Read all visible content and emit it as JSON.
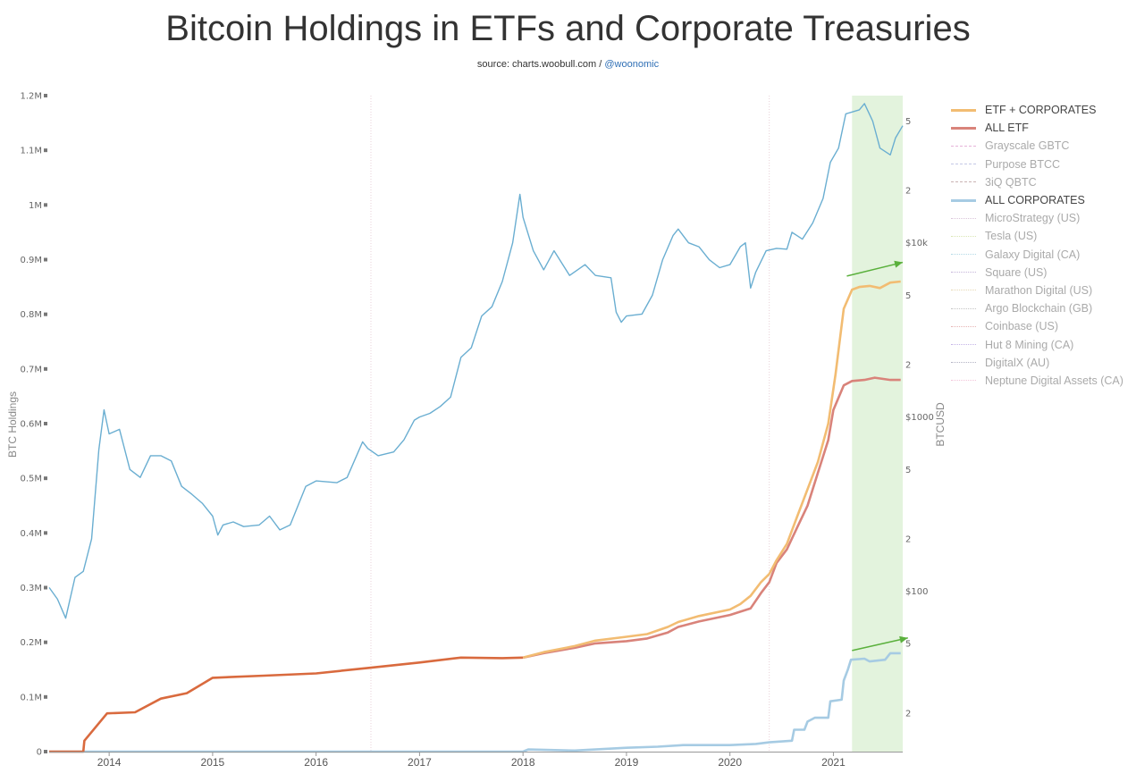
{
  "title": "Bitcoin Holdings in ETFs and Corporate Treasuries",
  "subtitle": {
    "source": "source: charts.woobull.com /",
    "handle": "@woonomic"
  },
  "chart_data": {
    "type": "line",
    "left_axis": {
      "label": "BTC Holdings",
      "ticks": [
        "0",
        "0.1M",
        "0.2M",
        "0.3M",
        "0.4M",
        "0.5M",
        "0.6M",
        "0.7M",
        "0.8M",
        "0.9M",
        "1M",
        "1.1M",
        "1.2M"
      ],
      "range": [
        0,
        1200000
      ]
    },
    "right_axis": {
      "label": "BTCUSD",
      "scale": "log",
      "ticks": [
        "2",
        "5",
        "$100",
        "2",
        "5",
        "$1000",
        "2",
        "5",
        "$10k",
        "2",
        "5"
      ]
    },
    "x_axis": {
      "ticks": [
        "2014",
        "2015",
        "2016",
        "2017",
        "2018",
        "2019",
        "2020",
        "2021"
      ],
      "range": [
        2013.42,
        2021.67
      ]
    },
    "highlight_region": {
      "from": 2021.18,
      "to": 2021.67,
      "color": "#e3f3dd"
    },
    "series": [
      {
        "name": "ETF + CORPORATES",
        "color": "#f2bc72",
        "axis": "left",
        "points": [
          [
            2018.0,
            172000
          ],
          [
            2018.2,
            182000
          ],
          [
            2018.5,
            193000
          ],
          [
            2018.7,
            203000
          ],
          [
            2019.0,
            210000
          ],
          [
            2019.2,
            215000
          ],
          [
            2019.4,
            228000
          ],
          [
            2019.5,
            237000
          ],
          [
            2019.7,
            248000
          ],
          [
            2020.0,
            260000
          ],
          [
            2020.1,
            270000
          ],
          [
            2020.2,
            285000
          ],
          [
            2020.3,
            310000
          ],
          [
            2020.38,
            325000
          ],
          [
            2020.45,
            350000
          ],
          [
            2020.55,
            380000
          ],
          [
            2020.65,
            430000
          ],
          [
            2020.75,
            480000
          ],
          [
            2020.85,
            530000
          ],
          [
            2020.95,
            600000
          ],
          [
            2021.02,
            690000
          ],
          [
            2021.1,
            810000
          ],
          [
            2021.18,
            845000
          ],
          [
            2021.25,
            850000
          ],
          [
            2021.35,
            852000
          ],
          [
            2021.45,
            848000
          ],
          [
            2021.55,
            858000
          ],
          [
            2021.65,
            860000
          ]
        ]
      },
      {
        "name": "ALL ETF",
        "color": "#d9837a",
        "axis": "left",
        "points": [
          [
            2018.0,
            172000
          ],
          [
            2018.2,
            180000
          ],
          [
            2018.5,
            190000
          ],
          [
            2018.7,
            198000
          ],
          [
            2019.0,
            202000
          ],
          [
            2019.2,
            207000
          ],
          [
            2019.4,
            218000
          ],
          [
            2019.5,
            228000
          ],
          [
            2019.7,
            238000
          ],
          [
            2020.0,
            250000
          ],
          [
            2020.2,
            262000
          ],
          [
            2020.3,
            290000
          ],
          [
            2020.38,
            310000
          ],
          [
            2020.45,
            345000
          ],
          [
            2020.55,
            370000
          ],
          [
            2020.65,
            410000
          ],
          [
            2020.75,
            450000
          ],
          [
            2020.85,
            510000
          ],
          [
            2020.95,
            570000
          ],
          [
            2021.0,
            625000
          ],
          [
            2021.1,
            670000
          ],
          [
            2021.18,
            678000
          ],
          [
            2021.3,
            680000
          ],
          [
            2021.4,
            684000
          ],
          [
            2021.55,
            680000
          ],
          [
            2021.65,
            680000
          ]
        ]
      },
      {
        "name": "ETF + CORPORATES (pre-2018)",
        "color": "#d96a3e",
        "axis": "left",
        "legend": false,
        "points": [
          [
            2013.42,
            0
          ],
          [
            2013.75,
            0
          ],
          [
            2013.76,
            20000
          ],
          [
            2013.98,
            70000
          ],
          [
            2014.25,
            72000
          ],
          [
            2014.5,
            97000
          ],
          [
            2014.75,
            107000
          ],
          [
            2015.0,
            135000
          ],
          [
            2015.5,
            139000
          ],
          [
            2016.0,
            143000
          ],
          [
            2016.5,
            153000
          ],
          [
            2017.0,
            163000
          ],
          [
            2017.4,
            172000
          ],
          [
            2017.8,
            171000
          ],
          [
            2018.0,
            172000
          ]
        ]
      },
      {
        "name": "ALL CORPORATES",
        "color": "#a6cbe3",
        "axis": "left",
        "points": [
          [
            2013.42,
            0
          ],
          [
            2018.0,
            0
          ],
          [
            2018.05,
            4000
          ],
          [
            2018.5,
            2000
          ],
          [
            2019.0,
            7000
          ],
          [
            2019.3,
            9000
          ],
          [
            2019.55,
            12000
          ],
          [
            2020.0,
            12000
          ],
          [
            2020.25,
            14000
          ],
          [
            2020.38,
            17000
          ],
          [
            2020.6,
            20000
          ],
          [
            2020.62,
            40000
          ],
          [
            2020.72,
            40000
          ],
          [
            2020.75,
            55000
          ],
          [
            2020.82,
            62000
          ],
          [
            2020.95,
            62000
          ],
          [
            2020.97,
            92000
          ],
          [
            2021.08,
            95000
          ],
          [
            2021.1,
            130000
          ],
          [
            2021.14,
            150000
          ],
          [
            2021.17,
            168000
          ],
          [
            2021.3,
            170000
          ],
          [
            2021.35,
            165000
          ],
          [
            2021.5,
            168000
          ],
          [
            2021.55,
            180000
          ],
          [
            2021.65,
            180000
          ]
        ]
      },
      {
        "name": "BTCUSD",
        "color": "#6aaed1",
        "axis": "right",
        "legend": false,
        "points": [
          [
            2013.42,
            105
          ],
          [
            2013.5,
            90
          ],
          [
            2013.58,
            70
          ],
          [
            2013.67,
            120
          ],
          [
            2013.75,
            130
          ],
          [
            2013.83,
            200
          ],
          [
            2013.9,
            650
          ],
          [
            2013.95,
            1100
          ],
          [
            2014.0,
            800
          ],
          [
            2014.1,
            850
          ],
          [
            2014.2,
            500
          ],
          [
            2014.3,
            450
          ],
          [
            2014.4,
            600
          ],
          [
            2014.5,
            600
          ],
          [
            2014.6,
            560
          ],
          [
            2014.7,
            400
          ],
          [
            2014.8,
            360
          ],
          [
            2014.9,
            320
          ],
          [
            2015.0,
            270
          ],
          [
            2015.05,
            210
          ],
          [
            2015.1,
            240
          ],
          [
            2015.2,
            250
          ],
          [
            2015.3,
            235
          ],
          [
            2015.45,
            240
          ],
          [
            2015.55,
            270
          ],
          [
            2015.65,
            225
          ],
          [
            2015.75,
            240
          ],
          [
            2015.9,
            400
          ],
          [
            2016.0,
            430
          ],
          [
            2016.2,
            420
          ],
          [
            2016.3,
            450
          ],
          [
            2016.45,
            720
          ],
          [
            2016.5,
            660
          ],
          [
            2016.6,
            600
          ],
          [
            2016.75,
            630
          ],
          [
            2016.85,
            740
          ],
          [
            2016.95,
            960
          ],
          [
            2017.0,
            1000
          ],
          [
            2017.1,
            1050
          ],
          [
            2017.2,
            1150
          ],
          [
            2017.3,
            1300
          ],
          [
            2017.4,
            2200
          ],
          [
            2017.5,
            2500
          ],
          [
            2017.6,
            3800
          ],
          [
            2017.7,
            4300
          ],
          [
            2017.8,
            6000
          ],
          [
            2017.9,
            10000
          ],
          [
            2017.97,
            19000
          ],
          [
            2018.0,
            14000
          ],
          [
            2018.1,
            9000
          ],
          [
            2018.2,
            7000
          ],
          [
            2018.3,
            9000
          ],
          [
            2018.45,
            6500
          ],
          [
            2018.6,
            7500
          ],
          [
            2018.7,
            6500
          ],
          [
            2018.85,
            6300
          ],
          [
            2018.9,
            4000
          ],
          [
            2018.95,
            3500
          ],
          [
            2019.0,
            3800
          ],
          [
            2019.15,
            3900
          ],
          [
            2019.25,
            5000
          ],
          [
            2019.35,
            8000
          ],
          [
            2019.45,
            11000
          ],
          [
            2019.5,
            12000
          ],
          [
            2019.6,
            10000
          ],
          [
            2019.7,
            9500
          ],
          [
            2019.8,
            8000
          ],
          [
            2019.9,
            7200
          ],
          [
            2020.0,
            7500
          ],
          [
            2020.1,
            9500
          ],
          [
            2020.15,
            10000
          ],
          [
            2020.2,
            5500
          ],
          [
            2020.25,
            6800
          ],
          [
            2020.35,
            9000
          ],
          [
            2020.45,
            9300
          ],
          [
            2020.55,
            9200
          ],
          [
            2020.6,
            11500
          ],
          [
            2020.7,
            10500
          ],
          [
            2020.8,
            13000
          ],
          [
            2020.9,
            18000
          ],
          [
            2020.97,
            29000
          ],
          [
            2021.05,
            35000
          ],
          [
            2021.12,
            55000
          ],
          [
            2021.25,
            58000
          ],
          [
            2021.3,
            63000
          ],
          [
            2021.38,
            50000
          ],
          [
            2021.45,
            35000
          ],
          [
            2021.55,
            32000
          ],
          [
            2021.6,
            40000
          ],
          [
            2021.67,
            47000
          ]
        ]
      }
    ],
    "legend": [
      {
        "name": "ETF + CORPORATES",
        "color": "#f2bc72",
        "style": "solid",
        "weight": "bold"
      },
      {
        "name": "ALL ETF",
        "color": "#d9837a",
        "style": "solid",
        "weight": "bold"
      },
      {
        "name": "Grayscale GBTC",
        "color": "#e6b3d9",
        "style": "dashed",
        "weight": "faint"
      },
      {
        "name": "Purpose BTCC",
        "color": "#c4c8e6",
        "style": "dashed",
        "weight": "faint"
      },
      {
        "name": "3iQ QBTC",
        "color": "#c9b3b3",
        "style": "dashed",
        "weight": "faint"
      },
      {
        "name": "ALL CORPORATES",
        "color": "#a6cbe3",
        "style": "solid",
        "weight": "bold"
      },
      {
        "name": "MicroStrategy (US)",
        "color": "#d9c4d9",
        "style": "dotted",
        "weight": "faint"
      },
      {
        "name": "Tesla (US)",
        "color": "#d9e6b3",
        "style": "dotted",
        "weight": "faint"
      },
      {
        "name": "Galaxy Digital (CA)",
        "color": "#b3d9e6",
        "style": "dotted",
        "weight": "faint"
      },
      {
        "name": "Square (US)",
        "color": "#c4b3d9",
        "style": "dotted",
        "weight": "faint"
      },
      {
        "name": "Marathon Digital (US)",
        "color": "#e6d9b3",
        "style": "dotted",
        "weight": "faint"
      },
      {
        "name": "Argo Blockchain (GB)",
        "color": "#c4c4c4",
        "style": "dotted",
        "weight": "faint"
      },
      {
        "name": "Coinbase (US)",
        "color": "#e6b3b3",
        "style": "dotted",
        "weight": "faint"
      },
      {
        "name": "Hut 8 Mining (CA)",
        "color": "#c4b3e6",
        "style": "dotted",
        "weight": "faint"
      },
      {
        "name": "DigitalX (AU)",
        "color": "#b3b3c4",
        "style": "dotted",
        "weight": "faint"
      },
      {
        "name": "Neptune Digital Assets (CA)",
        "color": "#f2c4d9",
        "style": "dotted",
        "weight": "faint"
      }
    ],
    "annotations": [
      {
        "type": "arrow",
        "color": "#5ab03c",
        "from": [
          2021.13,
          870000
        ],
        "to": [
          2021.67,
          895000
        ]
      },
      {
        "type": "arrow",
        "color": "#5ab03c",
        "from": [
          2021.18,
          185000
        ],
        "to": [
          2021.72,
          208000
        ]
      }
    ],
    "vertical_markers": [
      2016.53,
      2020.38
    ]
  }
}
